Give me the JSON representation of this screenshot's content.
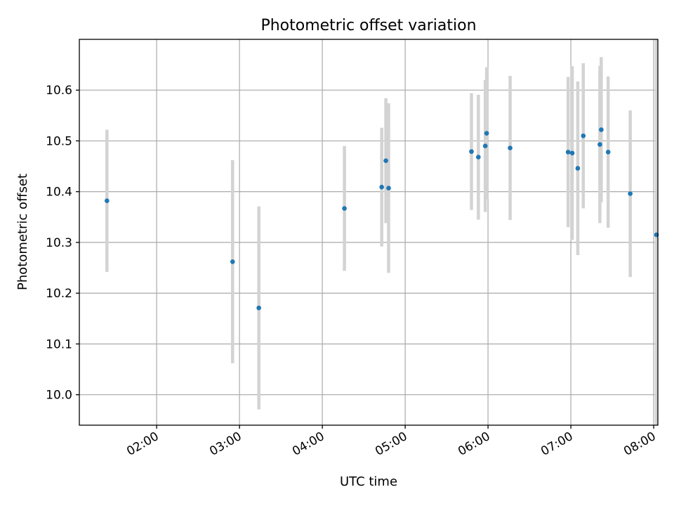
{
  "chart_data": {
    "type": "scatter",
    "title": "Photometric offset variation",
    "xlabel": "UTC time",
    "ylabel": "Photometric offset",
    "xlim": [
      "01:04",
      "08:03"
    ],
    "ylim": [
      9.94,
      10.7
    ],
    "x_ticks": [
      "02:00",
      "03:00",
      "04:00",
      "05:00",
      "06:00",
      "07:00",
      "08:00"
    ],
    "y_ticks": [
      "10.0",
      "10.1",
      "10.2",
      "10.3",
      "10.4",
      "10.5",
      "10.6"
    ],
    "grid": true,
    "marker_color": "#1f77b4",
    "errorbar_color": "#d3d3d3",
    "points": [
      {
        "x": "01:24",
        "y": 10.382,
        "err": 0.14
      },
      {
        "x": "02:55",
        "y": 10.262,
        "err": 0.2
      },
      {
        "x": "03:14",
        "y": 10.171,
        "err": 0.2
      },
      {
        "x": "04:16",
        "y": 10.367,
        "err": 0.123
      },
      {
        "x": "04:43",
        "y": 10.409,
        "err": 0.117
      },
      {
        "x": "04:46",
        "y": 10.461,
        "err": 0.123
      },
      {
        "x": "04:48",
        "y": 10.407,
        "err": 0.167
      },
      {
        "x": "05:48",
        "y": 10.479,
        "err": 0.115
      },
      {
        "x": "05:53",
        "y": 10.468,
        "err": 0.123
      },
      {
        "x": "05:58",
        "y": 10.49,
        "err": 0.13
      },
      {
        "x": "05:59",
        "y": 10.515,
        "err": 0.13
      },
      {
        "x": "06:16",
        "y": 10.486,
        "err": 0.142
      },
      {
        "x": "06:58",
        "y": 10.478,
        "err": 0.148
      },
      {
        "x": "07:01",
        "y": 10.476,
        "err": 0.171
      },
      {
        "x": "07:05",
        "y": 10.446,
        "err": 0.171
      },
      {
        "x": "07:09",
        "y": 10.51,
        "err": 0.143
      },
      {
        "x": "07:21",
        "y": 10.493,
        "err": 0.155
      },
      {
        "x": "07:22",
        "y": 10.522,
        "err": 0.143
      },
      {
        "x": "07:27",
        "y": 10.478,
        "err": 0.149
      },
      {
        "x": "07:43",
        "y": 10.396,
        "err": 0.164
      },
      {
        "x": "08:02",
        "y": 10.315,
        "err": 0.385
      }
    ]
  }
}
